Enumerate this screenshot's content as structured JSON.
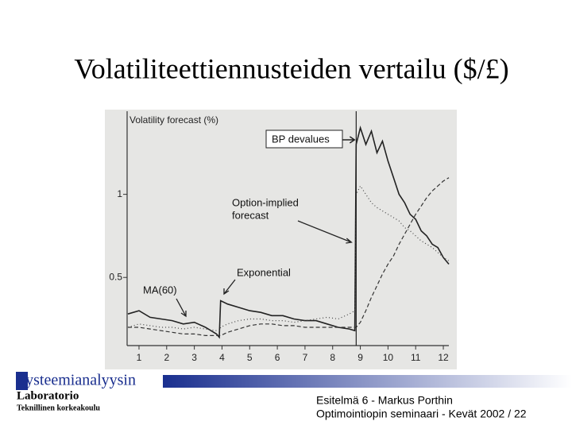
{
  "slide": {
    "title": "Volatiliteettiennusteiden vertailu ($/£)",
    "logo": {
      "name": "Systeemianalyysin",
      "lab": "Laboratorio",
      "university": "Teknillinen korkeakoulu"
    },
    "footer": {
      "line1": "Esitelmä 6 - Markus Porthin",
      "line2": "Optimointiopin seminaari - Kevät 2002 / 22"
    }
  },
  "chart_data": {
    "type": "line",
    "y_label": "Volatility forecast (%)",
    "x": [
      0.6,
      1,
      1.4,
      1.8,
      2.2,
      2.6,
      3,
      3.4,
      3.8,
      3.9,
      3.95,
      4.2,
      4.6,
      5,
      5.4,
      5.8,
      6.2,
      6.6,
      7,
      7.4,
      7.8,
      8.2,
      8.6,
      8.8,
      8.85,
      9,
      9.2,
      9.4,
      9.6,
      9.8,
      10,
      10.2,
      10.4,
      10.6,
      10.8,
      11,
      11.2,
      11.4,
      11.6,
      11.8,
      12,
      12.2
    ],
    "series": [
      {
        "name": "Exponential",
        "color": "#222222",
        "dash": "none",
        "values": [
          0.28,
          0.3,
          0.26,
          0.25,
          0.24,
          0.22,
          0.23,
          0.2,
          0.16,
          0.14,
          0.36,
          0.34,
          0.32,
          0.3,
          0.29,
          0.27,
          0.27,
          0.25,
          0.24,
          0.24,
          0.22,
          0.2,
          0.19,
          0.18,
          1.3,
          1.4,
          1.3,
          1.38,
          1.25,
          1.32,
          1.2,
          1.1,
          1.0,
          0.95,
          0.88,
          0.85,
          0.78,
          0.75,
          0.7,
          0.68,
          0.62,
          0.58
        ]
      },
      {
        "name": "MA(60)",
        "color": "#333333",
        "dash": "5 3",
        "values": [
          0.2,
          0.2,
          0.19,
          0.18,
          0.17,
          0.16,
          0.16,
          0.15,
          0.15,
          0.15,
          0.15,
          0.17,
          0.19,
          0.21,
          0.22,
          0.22,
          0.21,
          0.21,
          0.2,
          0.2,
          0.2,
          0.2,
          0.2,
          0.2,
          0.2,
          0.23,
          0.3,
          0.38,
          0.45,
          0.52,
          0.58,
          0.63,
          0.7,
          0.76,
          0.82,
          0.88,
          0.93,
          0.98,
          1.02,
          1.05,
          1.08,
          1.1
        ]
      },
      {
        "name": "Option-implied",
        "color": "#444444",
        "dash": "1 3",
        "values": [
          0.2,
          0.22,
          0.21,
          0.2,
          0.2,
          0.19,
          0.2,
          0.19,
          0.18,
          0.18,
          0.2,
          0.22,
          0.24,
          0.25,
          0.25,
          0.24,
          0.24,
          0.23,
          0.24,
          0.25,
          0.26,
          0.25,
          0.28,
          0.3,
          1.0,
          1.05,
          1.0,
          0.95,
          0.92,
          0.9,
          0.88,
          0.86,
          0.84,
          0.8,
          0.78,
          0.75,
          0.72,
          0.7,
          0.68,
          0.65,
          0.62,
          0.6
        ]
      }
    ],
    "annotations": [
      {
        "text": "BP devalues",
        "x": 8.85
      },
      {
        "lines": [
          "Option-implied",
          "forecast"
        ]
      },
      {
        "text": "Exponential"
      },
      {
        "text": "MA(60)"
      }
    ],
    "xlim": [
      0.57,
      12.2
    ],
    "ylim": [
      0.09,
      1.5
    ],
    "xticks": [
      1,
      2,
      3,
      4,
      5,
      6,
      7,
      8,
      9,
      10,
      11,
      12
    ],
    "yticks": [
      0.5,
      1
    ]
  }
}
